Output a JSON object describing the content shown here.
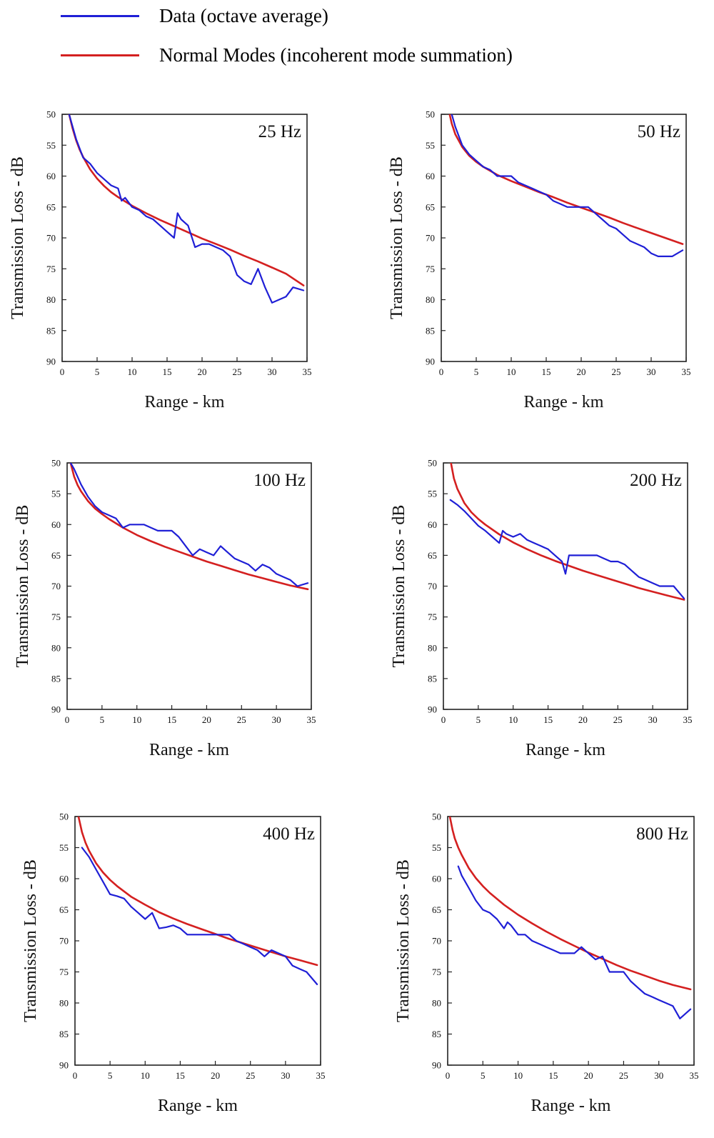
{
  "legend": {
    "data_label": "Data (octave average)",
    "model_label": "Normal Modes (incoherent mode summation)",
    "data_color": "#1f1fd6",
    "model_color": "#d42020"
  },
  "chart_data": [
    {
      "type": "line",
      "annotation": "25 Hz",
      "xlabel": "Range - km",
      "ylabel": "Transmission Loss - dB",
      "xlim": [
        0,
        35
      ],
      "ylim": [
        50,
        90
      ],
      "y_inverted": true,
      "xticks": [
        "0",
        "5",
        "10",
        "15",
        "20",
        "25",
        "30",
        "35"
      ],
      "yticks": [
        "50",
        "55",
        "60",
        "65",
        "70",
        "75",
        "80",
        "85",
        "90"
      ],
      "series": [
        {
          "name": "Data (octave average)",
          "color": "#1f1fd6",
          "x": [
            1,
            2,
            3,
            4,
            5,
            6,
            7,
            8,
            8.5,
            9,
            10,
            11,
            12,
            13,
            14,
            15,
            16,
            16.5,
            17,
            18,
            19,
            20,
            21,
            22,
            23,
            24,
            25,
            26,
            27,
            28,
            29,
            30,
            31,
            32,
            33,
            34.5
          ],
          "y": [
            50,
            54,
            57,
            58,
            59.5,
            60.5,
            61.5,
            62,
            64,
            63.5,
            65,
            65.5,
            66.5,
            67,
            68,
            69,
            70,
            66,
            67,
            68,
            71.5,
            71,
            71,
            71.5,
            72,
            73,
            76,
            77,
            77.5,
            75,
            78,
            80.5,
            80,
            79.5,
            78,
            78.5
          ]
        },
        {
          "name": "Normal Modes (incoherent mode summation)",
          "color": "#d42020",
          "x": [
            1,
            1.5,
            2,
            2.5,
            3,
            4,
            5,
            6,
            7,
            8,
            10,
            12,
            14,
            16,
            18,
            20,
            22,
            24,
            26,
            28,
            30,
            32,
            34.5
          ],
          "y": [
            50,
            52.3,
            54.2,
            55.7,
            56.9,
            58.9,
            60.4,
            61.6,
            62.6,
            63.4,
            64.8,
            66,
            67.1,
            68.1,
            69.1,
            70.1,
            71,
            71.9,
            72.9,
            73.8,
            74.8,
            75.8,
            77.7
          ]
        }
      ]
    },
    {
      "type": "line",
      "annotation": "50 Hz",
      "xlabel": "Range - km",
      "ylabel": "Transmission Loss - dB",
      "xlim": [
        0,
        35
      ],
      "ylim": [
        50,
        90
      ],
      "y_inverted": true,
      "xticks": [
        "0",
        "5",
        "10",
        "15",
        "20",
        "25",
        "30",
        "35"
      ],
      "yticks": [
        "50",
        "55",
        "60",
        "65",
        "70",
        "75",
        "80",
        "85",
        "90"
      ],
      "series": [
        {
          "name": "Data (octave average)",
          "color": "#1f1fd6",
          "x": [
            1,
            1.5,
            2,
            3,
            4,
            5,
            6,
            7,
            8,
            9,
            10,
            11,
            12,
            13,
            14,
            15,
            16,
            17,
            18,
            19,
            20,
            21,
            22,
            23,
            24,
            25,
            26,
            27,
            28,
            29,
            30,
            31,
            32,
            33,
            34.5
          ],
          "y": [
            48.5,
            50,
            52,
            55,
            56.5,
            57.5,
            58.5,
            59,
            60,
            60,
            60,
            61,
            61.5,
            62,
            62.5,
            63,
            64,
            64.5,
            65,
            65,
            65,
            65,
            66,
            67,
            68,
            68.5,
            69.5,
            70.5,
            71,
            71.5,
            72.5,
            73,
            73,
            73,
            72
          ]
        },
        {
          "name": "Normal Modes (incoherent mode summation)",
          "color": "#d42020",
          "x": [
            1,
            1.5,
            2,
            3,
            4,
            5,
            6,
            8,
            10,
            12,
            14,
            16,
            18,
            20,
            22,
            24,
            26,
            28,
            30,
            32,
            34.5
          ],
          "y": [
            49,
            51.5,
            53.2,
            55.3,
            56.7,
            57.7,
            58.5,
            59.8,
            60.8,
            61.7,
            62.6,
            63.4,
            64.3,
            65.1,
            65.9,
            66.7,
            67.6,
            68.4,
            69.2,
            70,
            71
          ]
        }
      ]
    },
    {
      "type": "line",
      "annotation": "100 Hz",
      "xlabel": "Range - km",
      "ylabel": "Transmission Loss - dB",
      "xlim": [
        0,
        35
      ],
      "ylim": [
        50,
        90
      ],
      "y_inverted": true,
      "xticks": [
        "0",
        "5",
        "10",
        "15",
        "20",
        "25",
        "30",
        "35"
      ],
      "yticks": [
        "50",
        "55",
        "60",
        "65",
        "70",
        "75",
        "80",
        "85",
        "90"
      ],
      "series": [
        {
          "name": "Data (octave average)",
          "color": "#1f1fd6",
          "x": [
            0.5,
            1,
            2,
            3,
            4,
            5,
            6,
            7,
            8,
            9,
            10,
            11,
            12,
            13,
            14,
            15,
            16,
            17,
            18,
            19,
            20,
            21,
            22,
            23,
            24,
            25,
            26,
            27,
            28,
            29,
            30,
            31,
            32,
            33,
            34.5
          ],
          "y": [
            50,
            51,
            53.5,
            55.5,
            57,
            58,
            58.5,
            59,
            60.5,
            60,
            60,
            60,
            60.5,
            61,
            61,
            61,
            62,
            63.5,
            65,
            64,
            64.5,
            65,
            63.5,
            64.5,
            65.5,
            66,
            66.5,
            67.5,
            66.5,
            67,
            68,
            68.5,
            69,
            70,
            69.5
          ]
        },
        {
          "name": "Normal Modes (incoherent mode summation)",
          "color": "#d42020",
          "x": [
            0.5,
            1,
            1.5,
            2,
            3,
            4,
            5,
            6,
            8,
            10,
            12,
            14,
            16,
            18,
            20,
            22,
            24,
            26,
            28,
            30,
            32,
            34.5
          ],
          "y": [
            50,
            52.2,
            53.6,
            54.6,
            56.2,
            57.4,
            58.3,
            59.1,
            60.5,
            61.7,
            62.7,
            63.6,
            64.4,
            65.2,
            66,
            66.7,
            67.4,
            68.1,
            68.7,
            69.3,
            69.9,
            70.5
          ]
        }
      ]
    },
    {
      "type": "line",
      "annotation": "200 Hz",
      "xlabel": "Range - km",
      "ylabel": "Transmission Loss - dB",
      "xlim": [
        0,
        35
      ],
      "ylim": [
        50,
        90
      ],
      "y_inverted": true,
      "xticks": [
        "0",
        "5",
        "10",
        "15",
        "20",
        "25",
        "30",
        "35"
      ],
      "yticks": [
        "50",
        "55",
        "60",
        "65",
        "70",
        "75",
        "80",
        "85",
        "90"
      ],
      "series": [
        {
          "name": "Data (octave average)",
          "color": "#1f1fd6",
          "x": [
            1,
            2,
            3,
            4,
            5,
            6,
            7,
            8,
            8.5,
            9,
            10,
            11,
            12,
            13,
            14,
            15,
            16,
            17,
            17.5,
            18,
            19,
            20,
            21,
            22,
            23,
            24,
            25,
            26,
            27,
            28,
            29,
            30,
            31,
            32,
            33,
            34.5
          ],
          "y": [
            56,
            56.8,
            57.8,
            59,
            60.2,
            61,
            62,
            63,
            61,
            61.5,
            62,
            61.5,
            62.5,
            63,
            63.5,
            64,
            65,
            66,
            68,
            65,
            65,
            65,
            65,
            65,
            65.5,
            66,
            66,
            66.5,
            67.5,
            68.5,
            69,
            69.5,
            70,
            70,
            70,
            72
          ]
        },
        {
          "name": "Normal Modes (incoherent mode summation)",
          "color": "#d42020",
          "x": [
            1,
            1.5,
            2,
            3,
            4,
            5,
            6,
            8,
            10,
            12,
            14,
            16,
            18,
            20,
            22,
            24,
            26,
            28,
            30,
            32,
            34.5
          ],
          "y": [
            49.5,
            52.5,
            54.2,
            56.5,
            58,
            59.1,
            60,
            61.6,
            62.9,
            64,
            65,
            65.9,
            66.7,
            67.5,
            68.2,
            68.9,
            69.6,
            70.3,
            70.9,
            71.5,
            72.2
          ]
        }
      ]
    },
    {
      "type": "line",
      "annotation": "400 Hz",
      "xlabel": "Range - km",
      "ylabel": "Transmission Loss - dB",
      "xlim": [
        0,
        35
      ],
      "ylim": [
        50,
        90
      ],
      "y_inverted": true,
      "xticks": [
        "0",
        "5",
        "10",
        "15",
        "20",
        "25",
        "30",
        "35"
      ],
      "yticks": [
        "50",
        "55",
        "60",
        "65",
        "70",
        "75",
        "80",
        "85",
        "90"
      ],
      "series": [
        {
          "name": "Data (octave average)",
          "color": "#1f1fd6",
          "x": [
            1,
            2,
            3,
            4,
            5,
            6,
            7,
            8,
            9,
            10,
            11,
            12,
            13,
            14,
            15,
            16,
            17,
            18,
            19,
            20,
            21,
            22,
            23,
            24,
            25,
            26,
            27,
            28,
            29,
            30,
            31,
            32,
            33,
            34.5
          ],
          "y": [
            55,
            56.5,
            58.5,
            60.5,
            62.5,
            62.8,
            63.2,
            64.5,
            65.5,
            66.5,
            65.5,
            68,
            67.8,
            67.5,
            68,
            69,
            69,
            69,
            69,
            69,
            69,
            69,
            70,
            70.5,
            71,
            71.5,
            72.5,
            71.5,
            72,
            72.5,
            74,
            74.5,
            75,
            77
          ]
        },
        {
          "name": "Normal Modes (incoherent mode summation)",
          "color": "#d42020",
          "x": [
            0.5,
            1,
            1.5,
            2,
            3,
            4,
            5,
            6,
            8,
            10,
            12,
            14,
            16,
            18,
            20,
            22,
            24,
            26,
            28,
            30,
            32,
            34.5
          ],
          "y": [
            50,
            52.5,
            54.2,
            55.5,
            57.5,
            59,
            60.2,
            61.2,
            62.9,
            64.2,
            65.4,
            66.4,
            67.3,
            68.1,
            68.9,
            69.7,
            70.4,
            71.1,
            71.8,
            72.5,
            73.1,
            73.9
          ]
        }
      ]
    },
    {
      "type": "line",
      "annotation": "800 Hz",
      "xlabel": "Range - km",
      "ylabel": "Transmission Loss - dB",
      "xlim": [
        0,
        35
      ],
      "ylim": [
        50,
        90
      ],
      "y_inverted": true,
      "xticks": [
        "0",
        "5",
        "10",
        "15",
        "20",
        "25",
        "30",
        "35"
      ],
      "yticks": [
        "50",
        "55",
        "60",
        "65",
        "70",
        "75",
        "80",
        "85",
        "90"
      ],
      "series": [
        {
          "name": "Data (octave average)",
          "color": "#1f1fd6",
          "x": [
            1.5,
            2,
            3,
            4,
            5,
            6,
            7,
            8,
            8.5,
            9,
            10,
            11,
            12,
            13,
            14,
            15,
            16,
            17,
            18,
            19,
            20,
            21,
            22,
            23,
            24,
            25,
            26,
            27,
            28,
            29,
            30,
            31,
            32,
            33,
            34.5
          ],
          "y": [
            58,
            59.5,
            61.5,
            63.5,
            65,
            65.5,
            66.5,
            68,
            67,
            67.5,
            69,
            69,
            70,
            70.5,
            71,
            71.5,
            72,
            72,
            72,
            71,
            72,
            73,
            72.5,
            75,
            75,
            75,
            76.5,
            77.5,
            78.5,
            79,
            79.5,
            80,
            80.5,
            82.5,
            81
          ]
        },
        {
          "name": "Normal Modes (incoherent mode summation)",
          "color": "#d42020",
          "x": [
            0.3,
            0.7,
            1,
            1.5,
            2,
            3,
            4,
            5,
            6,
            8,
            10,
            12,
            14,
            16,
            18,
            20,
            22,
            24,
            26,
            28,
            30,
            32,
            34.5
          ],
          "y": [
            50,
            52.2,
            53.5,
            55,
            56.2,
            58.3,
            59.9,
            61.2,
            62.3,
            64.2,
            65.8,
            67.2,
            68.5,
            69.7,
            70.8,
            71.9,
            72.9,
            73.9,
            74.8,
            75.6,
            76.4,
            77.1,
            77.8
          ]
        }
      ]
    }
  ]
}
